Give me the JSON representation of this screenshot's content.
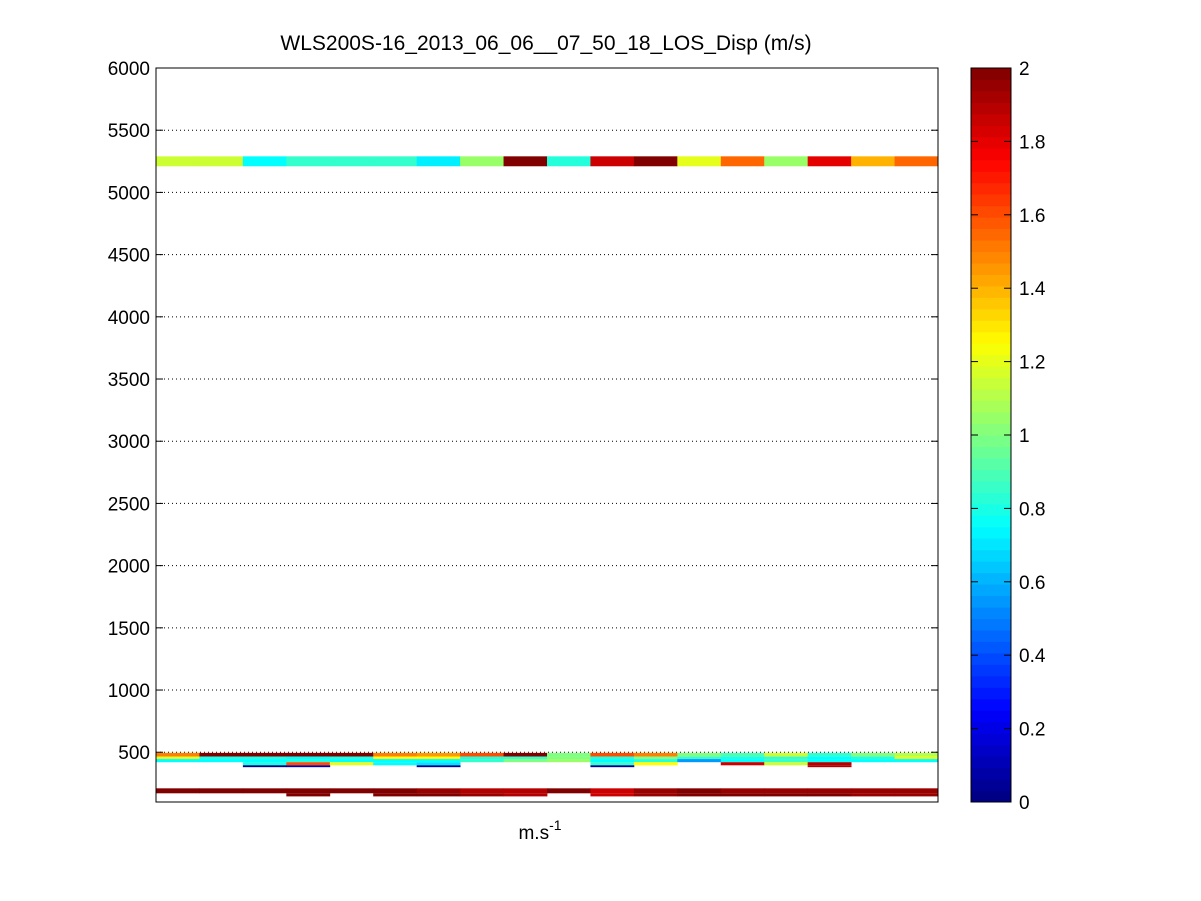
{
  "chart_data": {
    "type": "heatmap",
    "title": "WLS200S-16_2013_06_06__07_50_18_LOS_Disp (m/s)",
    "xlabel_base": "m.s",
    "xlabel_sup": "-1",
    "ylabel": "",
    "ylim": [
      100,
      6000
    ],
    "yticks": [
      500,
      1000,
      1500,
      2000,
      2500,
      3000,
      3500,
      4000,
      4500,
      5000,
      5500,
      6000
    ],
    "grid": "horizontal dotted",
    "colorbar": {
      "colormap": "jet",
      "range": [
        0,
        2
      ],
      "ticks": [
        "0",
        "0.2",
        "0.4",
        "0.6",
        "0.8",
        "1",
        "1.2",
        "1.4",
        "1.6",
        "1.8",
        "2"
      ]
    },
    "columns": 18,
    "rows": [
      {
        "y0": 5210,
        "y1": 5290,
        "values": [
          1.15,
          1.15,
          0.75,
          0.85,
          0.85,
          0.85,
          0.72,
          1.05,
          2.0,
          0.82,
          1.85,
          2.0,
          1.2,
          1.55,
          1.05,
          1.8,
          1.4,
          1.55
        ]
      },
      {
        "y0": 465,
        "y1": 495,
        "values": [
          1.5,
          2.0,
          2.0,
          2.0,
          2.0,
          1.5,
          1.45,
          1.6,
          2.0,
          1.0,
          1.6,
          1.5,
          1.0,
          0.9,
          1.15,
          0.85,
          1.0,
          1.1
        ]
      },
      {
        "y0": 445,
        "y1": 465,
        "values": [
          1.2,
          0.8,
          0.8,
          0.75,
          0.8,
          1.25,
          1.25,
          0.82,
          0.85,
          1.0,
          0.82,
          1.0,
          0.85,
          0.8,
          0.85,
          0.75,
          0.82,
          1.2
        ]
      },
      {
        "y0": 420,
        "y1": 445,
        "values": [
          0.75,
          0.75,
          0.75,
          0.8,
          0.75,
          0.75,
          0.75,
          0.85,
          1.0,
          1.05,
          0.75,
          0.82,
          0.55,
          0.75,
          0.85,
          0.75,
          0.75,
          0.75
        ]
      },
      {
        "y0": 395,
        "y1": 420,
        "values": [
          null,
          null,
          0.8,
          1.6,
          1.2,
          0.75,
          0.7,
          null,
          null,
          null,
          0.85,
          1.25,
          null,
          1.85,
          1.15,
          1.9,
          null,
          null
        ]
      },
      {
        "y0": 380,
        "y1": 395,
        "values": [
          null,
          null,
          0.0,
          0.1,
          null,
          null,
          0.05,
          null,
          null,
          null,
          0.05,
          null,
          null,
          null,
          null,
          1.9,
          null,
          null
        ]
      },
      {
        "y0": 170,
        "y1": 210,
        "values": [
          2.0,
          2.0,
          2.0,
          2.0,
          2.0,
          2.0,
          1.95,
          1.9,
          1.9,
          2.0,
          1.85,
          1.95,
          2.0,
          1.95,
          1.95,
          1.95,
          1.95,
          1.95
        ]
      },
      {
        "y0": 145,
        "y1": 170,
        "values": [
          null,
          null,
          null,
          2.0,
          null,
          2.0,
          2.0,
          1.95,
          1.9,
          null,
          1.85,
          1.95,
          2.0,
          2.0,
          2.0,
          2.0,
          1.95,
          1.95
        ]
      }
    ]
  }
}
